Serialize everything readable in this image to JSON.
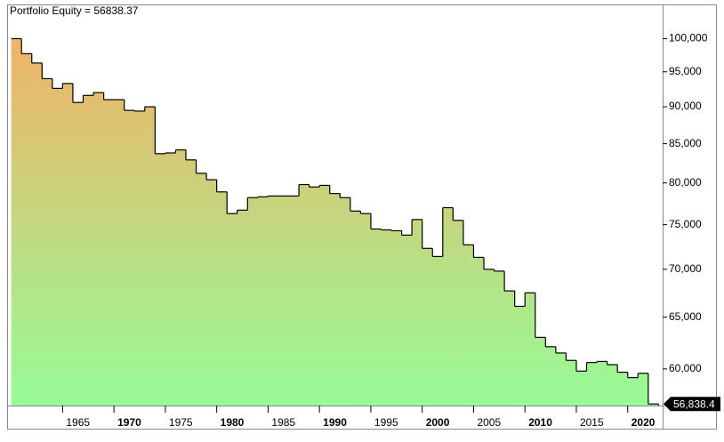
{
  "chart_data": {
    "type": "step-area",
    "title": "Portfolio Equity = 56838.37",
    "last_label": "56,838.4",
    "log_scale": true,
    "line_color": "#000000",
    "gradient": [
      "#f7ad63",
      "#97fb97"
    ],
    "x": [
      1960,
      1961,
      1962,
      1963,
      1964,
      1965,
      1966,
      1967,
      1968,
      1969,
      1970,
      1971,
      1972,
      1973,
      1974,
      1975,
      1976,
      1977,
      1978,
      1979,
      1980,
      1981,
      1982,
      1983,
      1984,
      1985,
      1986,
      1987,
      1988,
      1989,
      1990,
      1991,
      1992,
      1993,
      1994,
      1995,
      1996,
      1997,
      1998,
      1999,
      2000,
      2001,
      2002,
      2003,
      2004,
      2005,
      2006,
      2007,
      2008,
      2009,
      2010,
      2011,
      2012,
      2013,
      2014,
      2015,
      2016,
      2017,
      2018,
      2019,
      2020,
      2021,
      2022
    ],
    "values": [
      100000,
      97700,
      96300,
      94000,
      92600,
      93300,
      90600,
      91600,
      92000,
      91000,
      91000,
      89500,
      89400,
      90000,
      83700,
      83800,
      84200,
      82900,
      81200,
      80400,
      78900,
      76300,
      76700,
      78200,
      78300,
      78400,
      78400,
      78400,
      79800,
      79500,
      79700,
      78700,
      78200,
      76600,
      76300,
      74500,
      74400,
      74300,
      73800,
      75600,
      72300,
      71400,
      77000,
      75500,
      72700,
      71300,
      70000,
      69800,
      67700,
      66100,
      67500,
      63000,
      62100,
      61500,
      60800,
      59800,
      60600,
      60700,
      60400,
      59700,
      59200,
      59600,
      56838.37
    ],
    "xlim": [
      1959.6,
      2023.4
    ],
    "xticks": [
      1965,
      1970,
      1975,
      1980,
      1985,
      1990,
      1995,
      2000,
      2005,
      2010,
      2015,
      2020
    ],
    "ylim": [
      56700,
      105000
    ],
    "yticks": [
      {
        "value": 60000,
        "label": "60,000"
      },
      {
        "value": 65000,
        "label": "65,000"
      },
      {
        "value": 70000,
        "label": "70,000"
      },
      {
        "value": 75000,
        "label": "75,000"
      },
      {
        "value": 80000,
        "label": "80,000"
      },
      {
        "value": 85000,
        "label": "85,000"
      },
      {
        "value": 90000,
        "label": "90,000"
      },
      {
        "value": 95000,
        "label": "95,000"
      },
      {
        "value": 100000,
        "label": "100,000"
      }
    ]
  }
}
